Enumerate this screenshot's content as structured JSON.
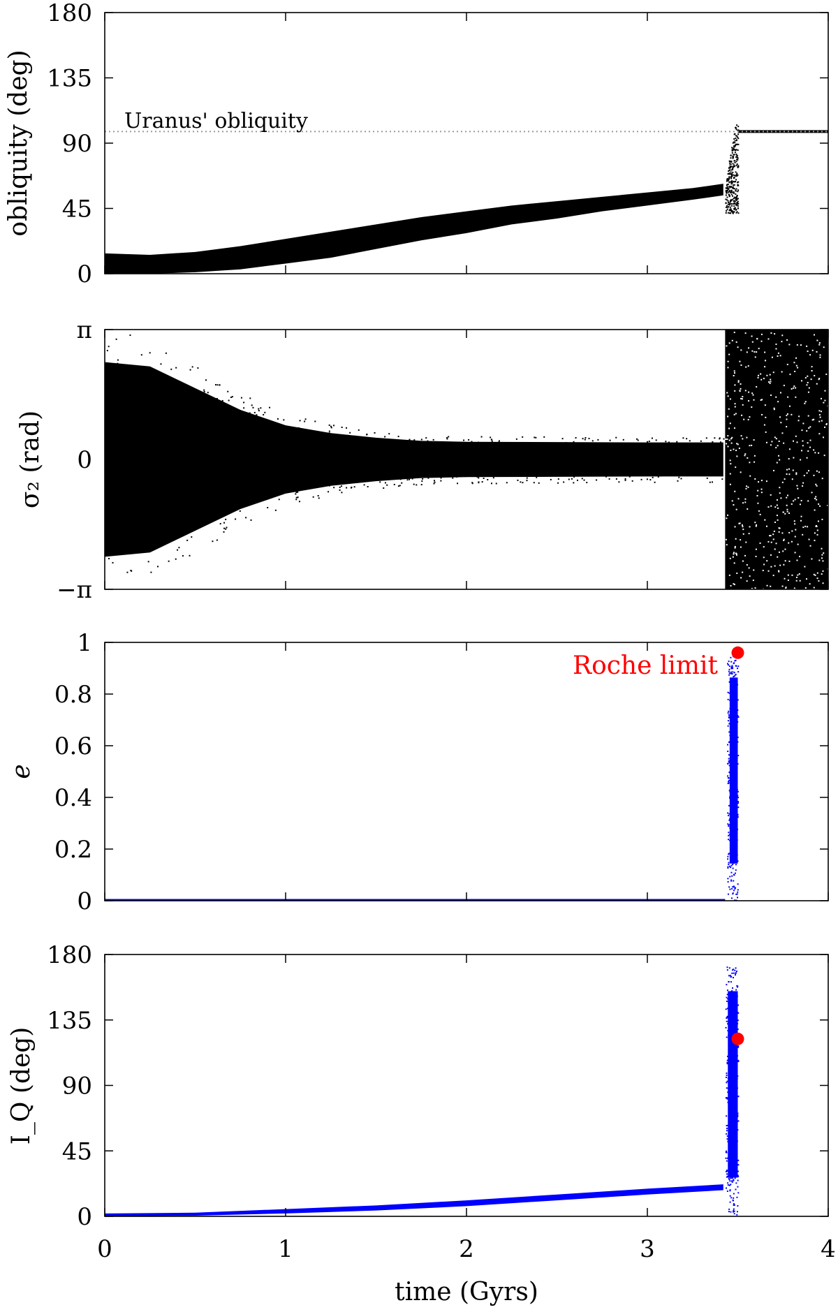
{
  "chart_data": [
    {
      "type": "scatter",
      "panel": "obliquity",
      "ylabel": "obliquity (deg)",
      "xlim": [
        0,
        4
      ],
      "ylim": [
        0,
        180
      ],
      "yticks": [
        "0",
        "45",
        "90",
        "135",
        "180"
      ],
      "reference_line": {
        "label": "Uranus' obliquity",
        "y": 98,
        "style": "dotted",
        "color": "#999999"
      },
      "series": [
        {
          "color": "#000000",
          "band": [
            {
              "x": 0.0,
              "low": 0,
              "high": 14
            },
            {
              "x": 0.25,
              "low": 0,
              "high": 13
            },
            {
              "x": 0.5,
              "low": 1,
              "high": 15
            },
            {
              "x": 0.75,
              "low": 3,
              "high": 19
            },
            {
              "x": 1.0,
              "low": 7,
              "high": 24
            },
            {
              "x": 1.25,
              "low": 11,
              "high": 29
            },
            {
              "x": 1.5,
              "low": 17,
              "high": 34
            },
            {
              "x": 1.75,
              "low": 23,
              "high": 39
            },
            {
              "x": 2.0,
              "low": 28,
              "high": 43
            },
            {
              "x": 2.25,
              "low": 34,
              "high": 47
            },
            {
              "x": 2.5,
              "low": 38,
              "high": 50
            },
            {
              "x": 2.75,
              "low": 43,
              "high": 53
            },
            {
              "x": 3.0,
              "low": 47,
              "high": 56
            },
            {
              "x": 3.25,
              "low": 51,
              "high": 59
            },
            {
              "x": 3.42,
              "low": 54,
              "high": 62
            }
          ],
          "transition": {
            "x_start": 3.43,
            "x_end": 3.5,
            "low": 42,
            "high": 114
          },
          "final": {
            "x_start": 3.5,
            "x_end": 4.0,
            "value": 98
          }
        }
      ]
    },
    {
      "type": "scatter",
      "panel": "sigma2",
      "ylabel": "σ₂ (rad)",
      "xlim": [
        0,
        4
      ],
      "ylim": [
        -3.14159,
        3.14159
      ],
      "yticks": [
        "−π",
        "0",
        "π"
      ],
      "series": [
        {
          "color": "#000000",
          "envelope": [
            {
              "x": 0.0,
              "half_width": 3.14
            },
            {
              "x": 0.25,
              "half_width": 3.0
            },
            {
              "x": 0.5,
              "half_width": 2.3
            },
            {
              "x": 0.75,
              "half_width": 1.6
            },
            {
              "x": 1.0,
              "half_width": 1.1
            },
            {
              "x": 1.25,
              "half_width": 0.85
            },
            {
              "x": 1.5,
              "half_width": 0.7
            },
            {
              "x": 1.75,
              "half_width": 0.6
            },
            {
              "x": 2.0,
              "half_width": 0.57
            },
            {
              "x": 3.0,
              "half_width": 0.55
            },
            {
              "x": 3.42,
              "half_width": 0.55
            }
          ],
          "circulation": {
            "x_start": 3.43,
            "x_end": 4.0,
            "low": -3.14159,
            "high": 3.14159
          }
        }
      ]
    },
    {
      "type": "scatter",
      "panel": "eccentricity",
      "ylabel": "e",
      "xlim": [
        0,
        4
      ],
      "ylim": [
        0,
        1
      ],
      "yticks": [
        "0",
        "0.2",
        "0.4",
        "0.6",
        "0.8",
        "1"
      ],
      "series": [
        {
          "color": "#0000ff",
          "baseline": {
            "x_start": 0.0,
            "x_end": 3.43,
            "value": 0.0
          },
          "spike": {
            "x_start": 3.44,
            "x_end": 3.5,
            "low": 0.0,
            "high": 0.96
          }
        }
      ],
      "marker": {
        "label": "Roche limit",
        "x": 3.5,
        "y": 0.96,
        "color": "#ff0000"
      }
    },
    {
      "type": "scatter",
      "panel": "inclination",
      "ylabel": "I_Q (deg)",
      "xlabel": "time (Gyrs)",
      "xlim": [
        0,
        4
      ],
      "ylim": [
        0,
        180
      ],
      "xticks": [
        "0",
        "1",
        "2",
        "3",
        "4"
      ],
      "yticks": [
        "0",
        "45",
        "90",
        "135",
        "180"
      ],
      "series": [
        {
          "color": "#0000ff",
          "band": [
            {
              "x": 0.0,
              "low": 0,
              "high": 2
            },
            {
              "x": 0.5,
              "low": 0.5,
              "high": 2.5
            },
            {
              "x": 1.0,
              "low": 2,
              "high": 5
            },
            {
              "x": 1.5,
              "low": 4,
              "high": 7.5
            },
            {
              "x": 2.0,
              "low": 7,
              "high": 11
            },
            {
              "x": 2.5,
              "low": 11,
              "high": 15
            },
            {
              "x": 3.0,
              "low": 15,
              "high": 19
            },
            {
              "x": 3.42,
              "low": 18,
              "high": 22
            }
          ],
          "spike": {
            "x_start": 3.43,
            "x_end": 3.5,
            "low": 1,
            "high": 172
          }
        }
      ],
      "marker": {
        "x": 3.5,
        "y": 122,
        "color": "#ff0000"
      }
    }
  ]
}
